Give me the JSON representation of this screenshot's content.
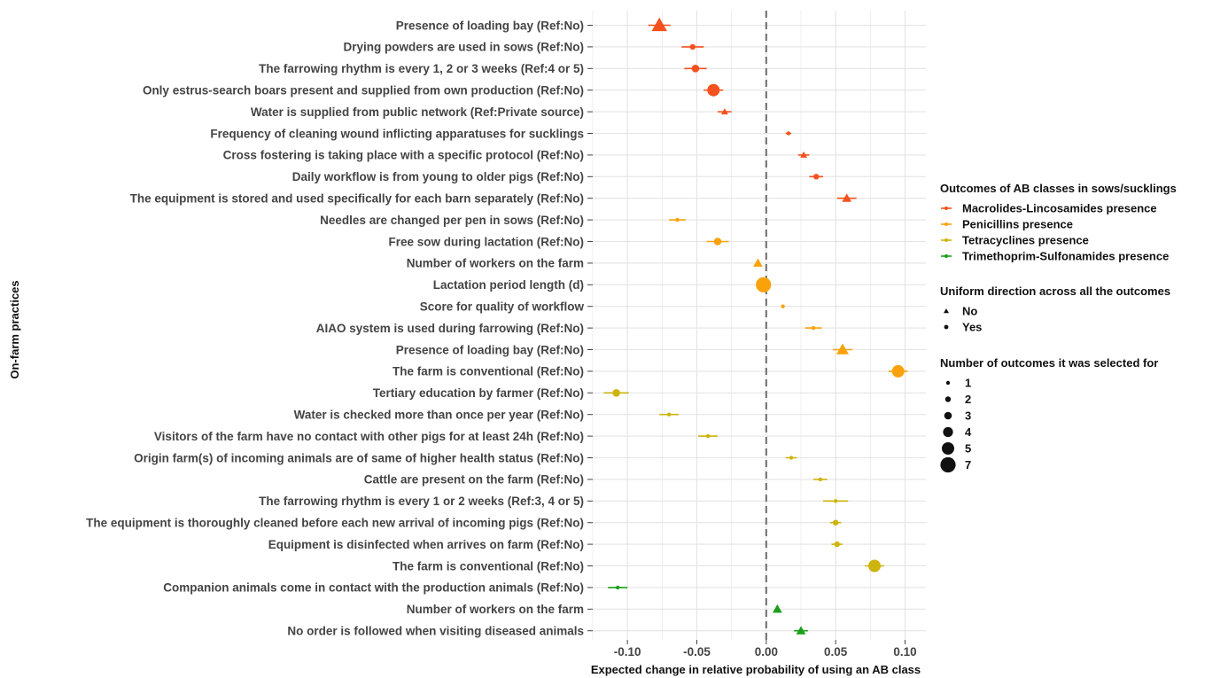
{
  "chart_data": {
    "type": "scatter",
    "title": "",
    "xlabel": "Expected change in relative probability of using an AB class",
    "ylabel": "On-farm practices",
    "xlim": [
      -0.125,
      0.115
    ],
    "x_ticks": [
      -0.1,
      -0.05,
      0.0,
      0.05,
      0.1
    ],
    "x_tick_labels": [
      "-0.10",
      "-0.05",
      "0.00",
      "0.05",
      "0.10"
    ],
    "reference_line": 0,
    "grid": true,
    "legend_position": "right",
    "legends": {
      "color": {
        "title": "Outcomes of AB classes in sows/sucklings",
        "items": [
          {
            "label": "Macrolides-Lincosamides presence",
            "color": "#F4511E"
          },
          {
            "label": "Penicillins presence",
            "color": "#F9A20C"
          },
          {
            "label": "Tetracyclines presence",
            "color": "#CDB40E"
          },
          {
            "label": "Trimethoprim-Sulfonamides presence",
            "color": "#1A9E1A"
          }
        ]
      },
      "shape": {
        "title": "Uniform direction across all the outcomes",
        "items": [
          {
            "label": "No",
            "shape": "triangle"
          },
          {
            "label": "Yes",
            "shape": "diamond"
          }
        ]
      },
      "size": {
        "title": "Number of outcomes it was selected for",
        "items": [
          "1",
          "2",
          "3",
          "4",
          "5",
          "7"
        ]
      }
    },
    "points": [
      {
        "label": "Presence of loading bay (Ref:No)",
        "outcome": 0,
        "x": -0.077,
        "lo": -0.085,
        "hi": -0.069,
        "shape": "triangle",
        "n": 5
      },
      {
        "label": "Drying powders are used in sows (Ref:No)",
        "outcome": 0,
        "x": -0.053,
        "lo": -0.061,
        "hi": -0.045,
        "shape": "diamond",
        "n": 2
      },
      {
        "label": "The farrowing rhythm is every 1, 2 or 3 weeks (Ref:4 or 5)",
        "outcome": 0,
        "x": -0.051,
        "lo": -0.059,
        "hi": -0.043,
        "shape": "diamond",
        "n": 3
      },
      {
        "label": "Only estrus-search boars present and supplied from own production (Ref:No)",
        "outcome": 0,
        "x": -0.038,
        "lo": -0.045,
        "hi": -0.031,
        "shape": "diamond",
        "n": 5
      },
      {
        "label": "Water is supplied from public network (Ref:Private source)",
        "outcome": 0,
        "x": -0.03,
        "lo": -0.035,
        "hi": -0.025,
        "shape": "triangle",
        "n": 2
      },
      {
        "label": "Frequency of cleaning wound inflicting apparatuses for sucklings",
        "outcome": 0,
        "x": 0.016,
        "lo": 0.014,
        "hi": 0.018,
        "shape": "diamond",
        "n": 1
      },
      {
        "label": "Cross fostering is taking place with a specific protocol (Ref:No)",
        "outcome": 0,
        "x": 0.027,
        "lo": 0.023,
        "hi": 0.031,
        "shape": "triangle",
        "n": 2
      },
      {
        "label": "Daily workflow is from young to older pigs (Ref:No)",
        "outcome": 0,
        "x": 0.036,
        "lo": 0.031,
        "hi": 0.041,
        "shape": "diamond",
        "n": 2
      },
      {
        "label": "The equipment is stored and used specifically for each barn separately (Ref:No)",
        "outcome": 0,
        "x": 0.058,
        "lo": 0.051,
        "hi": 0.065,
        "shape": "triangle",
        "n": 3
      },
      {
        "label": "Needles are changed per pen in sows (Ref:No)",
        "outcome": 1,
        "x": -0.064,
        "lo": -0.07,
        "hi": -0.058,
        "shape": "diamond",
        "n": 1
      },
      {
        "label": "Free sow during lactation (Ref:No)",
        "outcome": 1,
        "x": -0.035,
        "lo": -0.043,
        "hi": -0.027,
        "shape": "diamond",
        "n": 3
      },
      {
        "label": "Number of workers on the farm",
        "outcome": 1,
        "x": -0.006,
        "lo": -0.006,
        "hi": -0.006,
        "shape": "triangle",
        "n": 3
      },
      {
        "label": "Lactation period length (d)",
        "outcome": 1,
        "x": -0.002,
        "lo": -0.002,
        "hi": -0.002,
        "shape": "diamond",
        "n": 7
      },
      {
        "label": "Score for quality of workflow",
        "outcome": 1,
        "x": 0.012,
        "lo": 0.012,
        "hi": 0.012,
        "shape": "diamond",
        "n": 1
      },
      {
        "label": "AIAO system is used during farrowing (Ref:No)",
        "outcome": 1,
        "x": 0.034,
        "lo": 0.028,
        "hi": 0.04,
        "shape": "diamond",
        "n": 1
      },
      {
        "label": "Presence of loading bay (Ref:No)",
        "outcome": 1,
        "x": 0.055,
        "lo": 0.048,
        "hi": 0.062,
        "shape": "triangle",
        "n": 4
      },
      {
        "label": "The farm is conventional (Ref:No)",
        "outcome": 1,
        "x": 0.095,
        "lo": 0.088,
        "hi": 0.102,
        "shape": "diamond",
        "n": 5
      },
      {
        "label": "Tertiary education by farmer (Ref:No)",
        "outcome": 2,
        "x": -0.108,
        "lo": -0.117,
        "hi": -0.099,
        "shape": "diamond",
        "n": 3
      },
      {
        "label": "Water is checked more than once per year (Ref:No)",
        "outcome": 2,
        "x": -0.07,
        "lo": -0.077,
        "hi": -0.063,
        "shape": "diamond",
        "n": 1
      },
      {
        "label": "Visitors of the farm have no contact with other pigs for at least 24h (Ref:No)",
        "outcome": 2,
        "x": -0.042,
        "lo": -0.049,
        "hi": -0.035,
        "shape": "diamond",
        "n": 1
      },
      {
        "label": "Origin farm(s) of incoming animals are of same of higher health status (Ref:No)",
        "outcome": 2,
        "x": 0.018,
        "lo": 0.014,
        "hi": 0.022,
        "shape": "diamond",
        "n": 1
      },
      {
        "label": "Cattle are present on the farm (Ref:No)",
        "outcome": 2,
        "x": 0.039,
        "lo": 0.034,
        "hi": 0.044,
        "shape": "diamond",
        "n": 1
      },
      {
        "label": "The farrowing rhythm is every 1 or 2 weeks (Ref:3, 4 or 5)",
        "outcome": 2,
        "x": 0.05,
        "lo": 0.041,
        "hi": 0.059,
        "shape": "diamond",
        "n": 1
      },
      {
        "label": "The equipment is thoroughly cleaned before each new arrival of incoming pigs (Ref:No)",
        "outcome": 2,
        "x": 0.05,
        "lo": 0.046,
        "hi": 0.054,
        "shape": "diamond",
        "n": 2
      },
      {
        "label": "Equipment is disinfected when arrives on farm (Ref:No)",
        "outcome": 2,
        "x": 0.051,
        "lo": 0.047,
        "hi": 0.055,
        "shape": "diamond",
        "n": 2
      },
      {
        "label": "The farm is conventional (Ref:No)",
        "outcome": 2,
        "x": 0.078,
        "lo": 0.071,
        "hi": 0.085,
        "shape": "diamond",
        "n": 5
      },
      {
        "label": "Companion animals come in contact with the production animals (Ref:No)",
        "outcome": 3,
        "x": -0.107,
        "lo": -0.114,
        "hi": -0.1,
        "shape": "diamond",
        "n": 1
      },
      {
        "label": "Number of workers on the farm",
        "outcome": 3,
        "x": 0.008,
        "lo": 0.008,
        "hi": 0.008,
        "shape": "triangle",
        "n": 3
      },
      {
        "label": "No order is followed when visiting diseased animals",
        "outcome": 3,
        "x": 0.025,
        "lo": 0.02,
        "hi": 0.03,
        "shape": "triangle",
        "n": 3
      }
    ]
  }
}
